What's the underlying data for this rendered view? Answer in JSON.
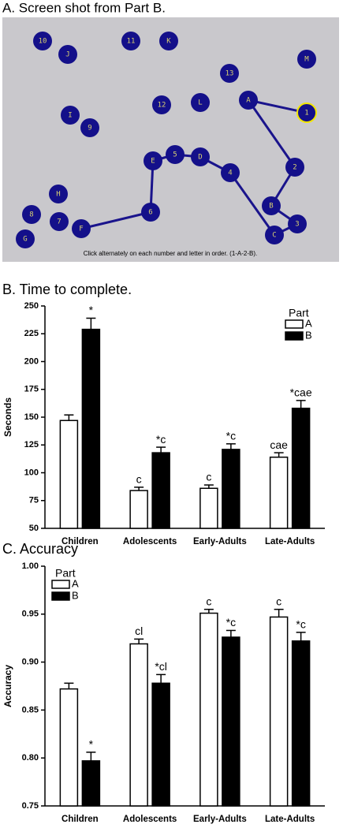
{
  "screenshot": {
    "title": "A. Screen shot from Part B.",
    "nodes": [
      "10",
      "J",
      "11",
      "K",
      "M",
      "13",
      "A",
      "1",
      "12",
      "L",
      "I",
      "9",
      "2",
      "E",
      "5",
      "D",
      "4",
      "H",
      "B",
      "8",
      "7",
      "6",
      "3",
      "F",
      "C",
      "G"
    ],
    "instruction": "Click alternately on each number and letter in order. (1-A-2-B)."
  },
  "chart_data": [
    {
      "type": "bar",
      "title": "B. Time to complete.",
      "y_label": "Seconds",
      "categories": [
        "Children",
        "Adolescents",
        "Early-Adults",
        "Late-Adults"
      ],
      "legend_title": "Part",
      "legend": "upper-right",
      "series": [
        {
          "name": "A",
          "color": "#ffffff",
          "values": [
            147,
            84,
            86,
            114
          ],
          "errors": [
            5,
            3,
            3,
            4
          ],
          "annotations": [
            null,
            "c",
            "c",
            "cae"
          ]
        },
        {
          "name": "B",
          "color": "#000000",
          "values": [
            229,
            118,
            121,
            158
          ],
          "errors": [
            10,
            5,
            5,
            7
          ],
          "annotations": [
            "*",
            "*c",
            "*c",
            "*cae"
          ]
        }
      ],
      "ylim": [
        50,
        250
      ],
      "yticks": [
        50,
        75,
        100,
        125,
        150,
        175,
        200,
        225,
        250
      ]
    },
    {
      "type": "bar",
      "title": "C. Accuracy",
      "y_label": "Accuracy",
      "categories": [
        "Children",
        "Adolescents",
        "Early-Adults",
        "Late-Adults"
      ],
      "legend_title": "Part",
      "legend": "upper-left",
      "series": [
        {
          "name": "A",
          "color": "#ffffff",
          "values": [
            0.872,
            0.919,
            0.951,
            0.947
          ],
          "errors": [
            0.006,
            0.005,
            0.004,
            0.008
          ],
          "annotations": [
            null,
            "cl",
            "c",
            "c"
          ]
        },
        {
          "name": "B",
          "color": "#000000",
          "values": [
            0.797,
            0.878,
            0.926,
            0.922
          ],
          "errors": [
            0.009,
            0.009,
            0.007,
            0.009
          ],
          "annotations": [
            "*",
            "*cl",
            "*c",
            "*c"
          ]
        }
      ],
      "ylim": [
        0.75,
        1.0
      ],
      "yticks": [
        {
          "value": 0.75,
          "label": "0.75"
        },
        {
          "value": 0.8,
          "label": "0.80"
        },
        {
          "value": 0.85,
          "label": "0.85"
        },
        {
          "value": 0.9,
          "label": "0.90"
        },
        {
          "value": 0.95,
          "label": "0.95"
        },
        {
          "value": 1.0,
          "label": "1.00"
        }
      ]
    }
  ]
}
